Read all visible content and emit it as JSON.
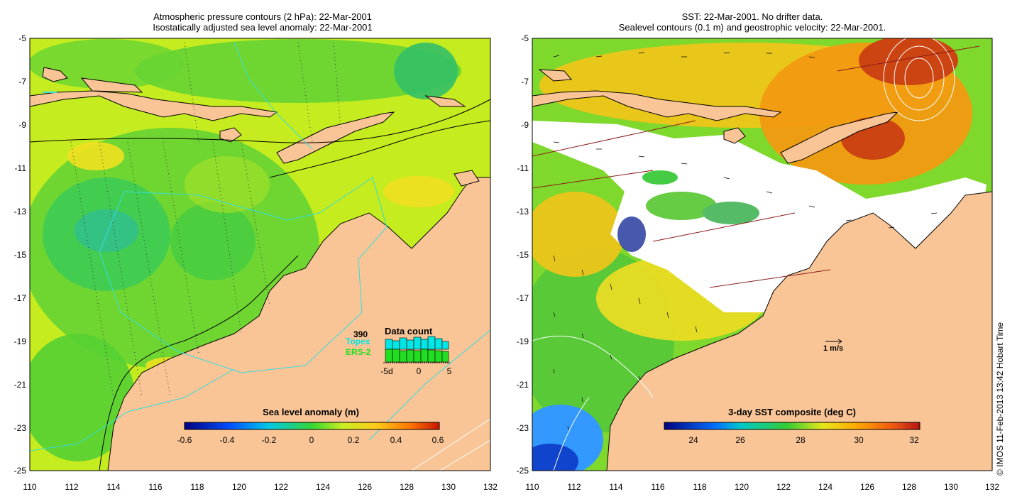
{
  "left_panel": {
    "title_line1": "Atmospheric pressure contours (2 hPa): 22-Mar-2001",
    "title_line2": "Isostatically adjusted sea level anomaly: 22-Mar-2001",
    "colorbar_title": "Sea level anomaly (m)",
    "colorbar_ticks": [
      "-0.6",
      "-0.4",
      "-0.2",
      "0",
      "0.2",
      "0.4",
      "0.6"
    ],
    "inset": {
      "title": "Data count",
      "count": "390",
      "sat1": "Topex",
      "sat2": "ERS-2",
      "x_ticks": [
        "-5d",
        "0",
        "5"
      ],
      "sat1_color": "#00e5e5",
      "sat2_color": "#22dd22"
    }
  },
  "right_panel": {
    "title_line1": "SST: 22-Mar-2001. No drifter data.",
    "title_line2": "Sealevel contours (0.1 m) and geostrophic velocity: 22-Mar-2001.",
    "colorbar_title": "3-day SST composite (deg C)",
    "colorbar_ticks": [
      "24",
      "26",
      "28",
      "30",
      "32"
    ],
    "scale_label": "1 m/s"
  },
  "axes": {
    "x_ticks": [
      "110",
      "112",
      "114",
      "116",
      "118",
      "120",
      "122",
      "124",
      "126",
      "128",
      "130",
      "132"
    ],
    "y_ticks": [
      "-5",
      "-7",
      "-9",
      "-11",
      "-13",
      "-15",
      "-17",
      "-19",
      "-21",
      "-23",
      "-25"
    ]
  },
  "colors": {
    "land": "#f9c596",
    "ocean_green": "#7fd82c",
    "ocean_yellowgreen": "#c4ec1e"
  },
  "copyright": "© IMOS 11-Feb-2013 13:42 Hobart Time"
}
